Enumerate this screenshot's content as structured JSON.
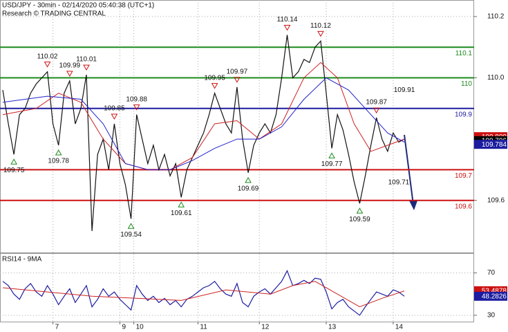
{
  "header": {
    "title": "USD/JPY - 30min - 02/14/2020 05:40:38 (UTC+1)",
    "subtitle": "Research © TRADING CENTRAL"
  },
  "chart_data": [
    {
      "type": "line",
      "xlim": [
        0,
        72
      ],
      "ylim": [
        109.43,
        110.254
      ],
      "yticks": [
        110.2,
        {
          "value": 110,
          "label": "110.0"
        },
        109.6
      ],
      "xticks": [
        {
          "value": 9,
          "label": "7"
        },
        {
          "value": 21,
          "label": "9"
        },
        {
          "value": 23.5,
          "label": "10"
        },
        {
          "value": 35,
          "label": "11"
        },
        {
          "value": 46,
          "label": "12"
        },
        {
          "value": 58,
          "label": "13"
        },
        {
          "value": 70,
          "label": "14"
        }
      ],
      "grid": true,
      "levels": [
        {
          "value": 110.1,
          "color": "#1a8a1a"
        },
        {
          "value": 110,
          "color": "#1a8a1a"
        },
        {
          "value": 109.9,
          "color": "#1c1ca0"
        },
        {
          "value": 109.7,
          "color": "#cc1111"
        },
        {
          "value": 109.6,
          "color": "#cc1111"
        }
      ],
      "annotations": [
        {
          "value": 109.75,
          "x": 2,
          "kind": "low"
        },
        {
          "value": 110.02,
          "x": 8,
          "kind": "high"
        },
        {
          "value": 109.78,
          "x": 10,
          "kind": "low"
        },
        {
          "value": 109.99,
          "x": 12,
          "kind": "high"
        },
        {
          "value": 110.01,
          "x": 15,
          "kind": "high"
        },
        {
          "value": 109.85,
          "x": 20,
          "kind": "high"
        },
        {
          "value": 109.54,
          "x": 23,
          "kind": "low"
        },
        {
          "value": 109.88,
          "x": 24,
          "kind": "high"
        },
        {
          "value": 109.61,
          "x": 32,
          "kind": "low"
        },
        {
          "value": 109.95,
          "x": 38,
          "kind": "high"
        },
        {
          "value": 109.97,
          "x": 42,
          "kind": "high"
        },
        {
          "value": 109.69,
          "x": 44,
          "kind": "low"
        },
        {
          "value": 110.14,
          "x": 51,
          "kind": "high"
        },
        {
          "value": 110.12,
          "x": 57,
          "kind": "high"
        },
        {
          "value": 109.77,
          "x": 59,
          "kind": "low"
        },
        {
          "value": 109.59,
          "x": 64,
          "kind": "low"
        },
        {
          "value": 109.87,
          "x": 67,
          "kind": "high"
        },
        {
          "value": 109.71,
          "x": 71,
          "kind": "low",
          "marker": false
        },
        {
          "value": 109.91,
          "x": 72,
          "kind": "high",
          "marker": false
        }
      ],
      "series": [
        {
          "color": "#111111",
          "values": [
            109.96,
            109.85,
            109.75,
            109.88,
            109.9,
            109.95,
            109.98,
            110.0,
            110.02,
            109.85,
            109.78,
            109.95,
            109.99,
            109.85,
            109.9,
            110.01,
            109.5,
            109.75,
            109.8,
            109.7,
            109.85,
            109.72,
            109.65,
            109.54,
            109.88,
            109.8,
            109.72,
            109.78,
            109.7,
            109.75,
            109.68,
            109.72,
            109.61,
            109.7,
            109.74,
            109.78,
            109.82,
            109.88,
            109.95,
            109.9,
            109.85,
            109.82,
            109.97,
            109.8,
            109.69,
            109.78,
            109.82,
            109.85,
            109.82,
            109.88,
            110.0,
            110.14,
            110.0,
            110.02,
            110.06,
            110.05,
            110.1,
            110.12,
            109.95,
            109.77,
            109.88,
            109.83,
            109.75,
            109.66,
            109.59,
            109.68,
            109.78,
            109.87,
            109.8,
            109.76,
            109.82,
            109.79,
            109.8
          ]
        },
        {
          "color": "#cc2222",
          "x": [
            0,
            6,
            10,
            14,
            18,
            22,
            26,
            30,
            34,
            38,
            42,
            46,
            50,
            54,
            57,
            60,
            63,
            66,
            69,
            72
          ],
          "values": [
            109.88,
            109.9,
            109.95,
            109.92,
            109.8,
            109.72,
            109.7,
            109.7,
            109.74,
            109.85,
            109.86,
            109.8,
            109.85,
            110.0,
            110.05,
            110.0,
            109.85,
            109.76,
            109.78,
            109.8
          ]
        },
        {
          "color": "#2222cc",
          "x": [
            0,
            8,
            14,
            18,
            22,
            26,
            30,
            34,
            38,
            42,
            46,
            50,
            54,
            58,
            62,
            66,
            69,
            72
          ],
          "values": [
            109.92,
            109.94,
            109.93,
            109.85,
            109.72,
            109.7,
            109.7,
            109.73,
            109.77,
            109.8,
            109.8,
            109.84,
            109.93,
            110.0,
            109.96,
            109.88,
            109.82,
            109.79
          ]
        }
      ],
      "last_values": [
        {
          "value": 109.809,
          "color": "#cc1111"
        },
        {
          "value": 109.796,
          "color": "#000000"
        },
        {
          "value": 109.784,
          "color": "#1c1ca0"
        }
      ]
    },
    {
      "type": "line",
      "title": "RSI14 - 9MA",
      "xlim": [
        0,
        72
      ],
      "ylim": [
        24,
        88
      ],
      "yticks": [
        70,
        30
      ],
      "grid": true,
      "series": [
        {
          "color": "#1c1ca0",
          "values": [
            62,
            58,
            50,
            45,
            55,
            60,
            52,
            48,
            58,
            50,
            40,
            48,
            55,
            42,
            50,
            58,
            38,
            45,
            55,
            48,
            52,
            45,
            40,
            35,
            58,
            50,
            44,
            48,
            42,
            46,
            40,
            44,
            38,
            45,
            48,
            52,
            56,
            58,
            62,
            55,
            50,
            48,
            60,
            42,
            38,
            48,
            52,
            55,
            50,
            56,
            62,
            72,
            58,
            60,
            63,
            60,
            65,
            64,
            52,
            36,
            42,
            45,
            38,
            34,
            30,
            38,
            45,
            52,
            50,
            48,
            54,
            52,
            48
          ]
        },
        {
          "color": "#cc2222",
          "x": [
            0,
            8,
            16,
            24,
            32,
            40,
            48,
            52,
            56,
            60,
            64,
            68,
            72
          ],
          "values": [
            56,
            52,
            48,
            46,
            44,
            54,
            50,
            58,
            62,
            50,
            38,
            46,
            53
          ]
        }
      ],
      "last_values": [
        {
          "value": 53.4878,
          "color": "#cc1111"
        },
        {
          "value": 48.2826,
          "color": "#1c1ca0"
        }
      ]
    }
  ]
}
